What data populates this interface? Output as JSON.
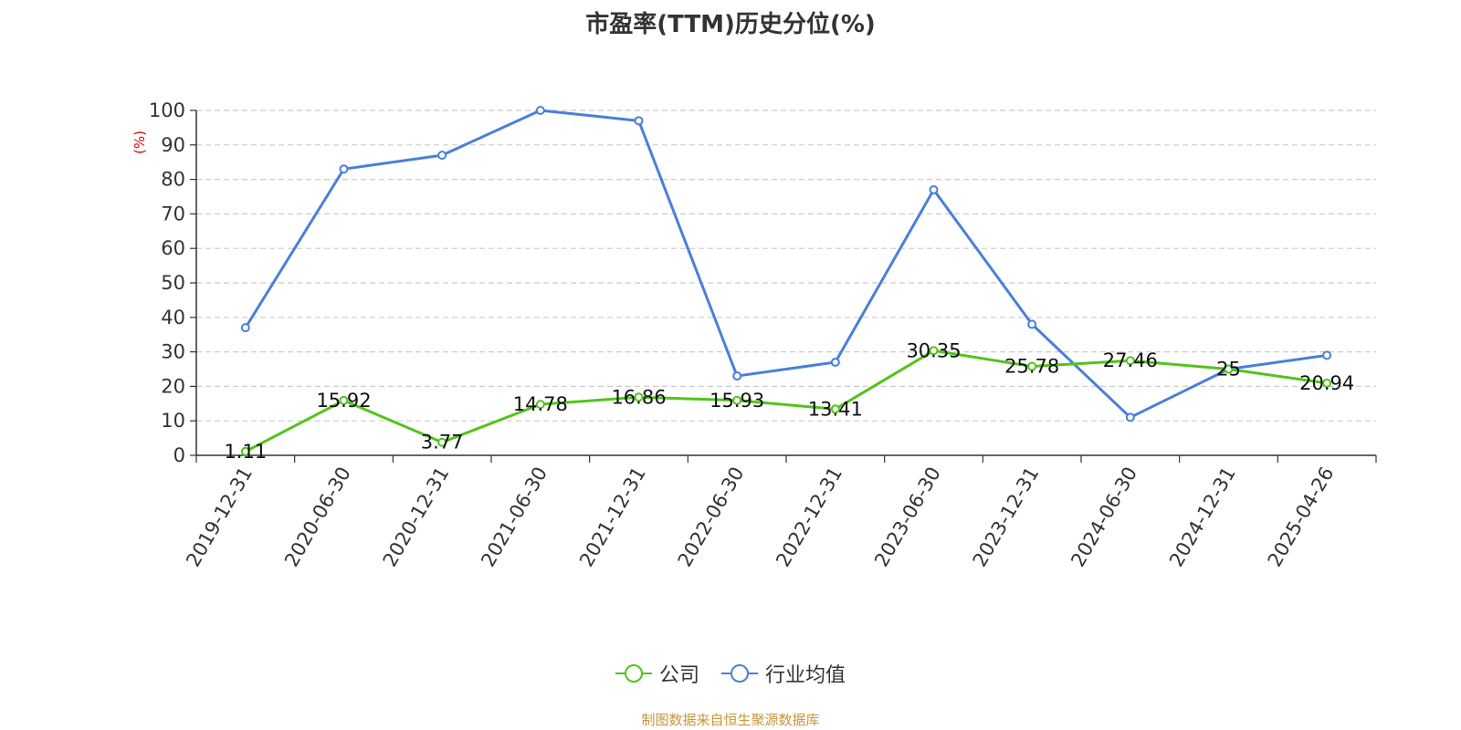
{
  "title": "市盈率(TTM)历史分位(%)",
  "source": "制图数据来自恒生聚源数据库",
  "chart_data": {
    "type": "line",
    "title": "市盈率(TTM)历史分位(%)",
    "ylabel": "(%)",
    "ylim": [
      0,
      100
    ],
    "yticks": [
      0,
      10,
      20,
      30,
      40,
      50,
      60,
      70,
      80,
      90,
      100
    ],
    "grid": true,
    "legend_position": "bottom",
    "x": [
      "2019-12-31",
      "2020-06-30",
      "2020-12-31",
      "2021-06-30",
      "2021-12-31",
      "2022-06-30",
      "2022-12-31",
      "2023-06-30",
      "2023-12-31",
      "2024-06-30",
      "2024-12-31",
      "2025-04-26"
    ],
    "series": [
      {
        "name": "公司",
        "color": "#52c41a",
        "values": [
          1.11,
          15.92,
          3.77,
          14.78,
          16.86,
          15.93,
          13.41,
          30.35,
          25.78,
          27.46,
          25,
          20.94
        ],
        "labels": [
          "1.11",
          "15.92",
          "3.77",
          "14.78",
          "16.86",
          "15.93",
          "13.41",
          "30.35",
          "25.78",
          "27.46",
          "25",
          "20.94"
        ]
      },
      {
        "name": "行业均值",
        "color": "#4a7fd9",
        "values": [
          37,
          83,
          87,
          100,
          97,
          23,
          27,
          77,
          38,
          11,
          25,
          29
        ]
      }
    ]
  }
}
